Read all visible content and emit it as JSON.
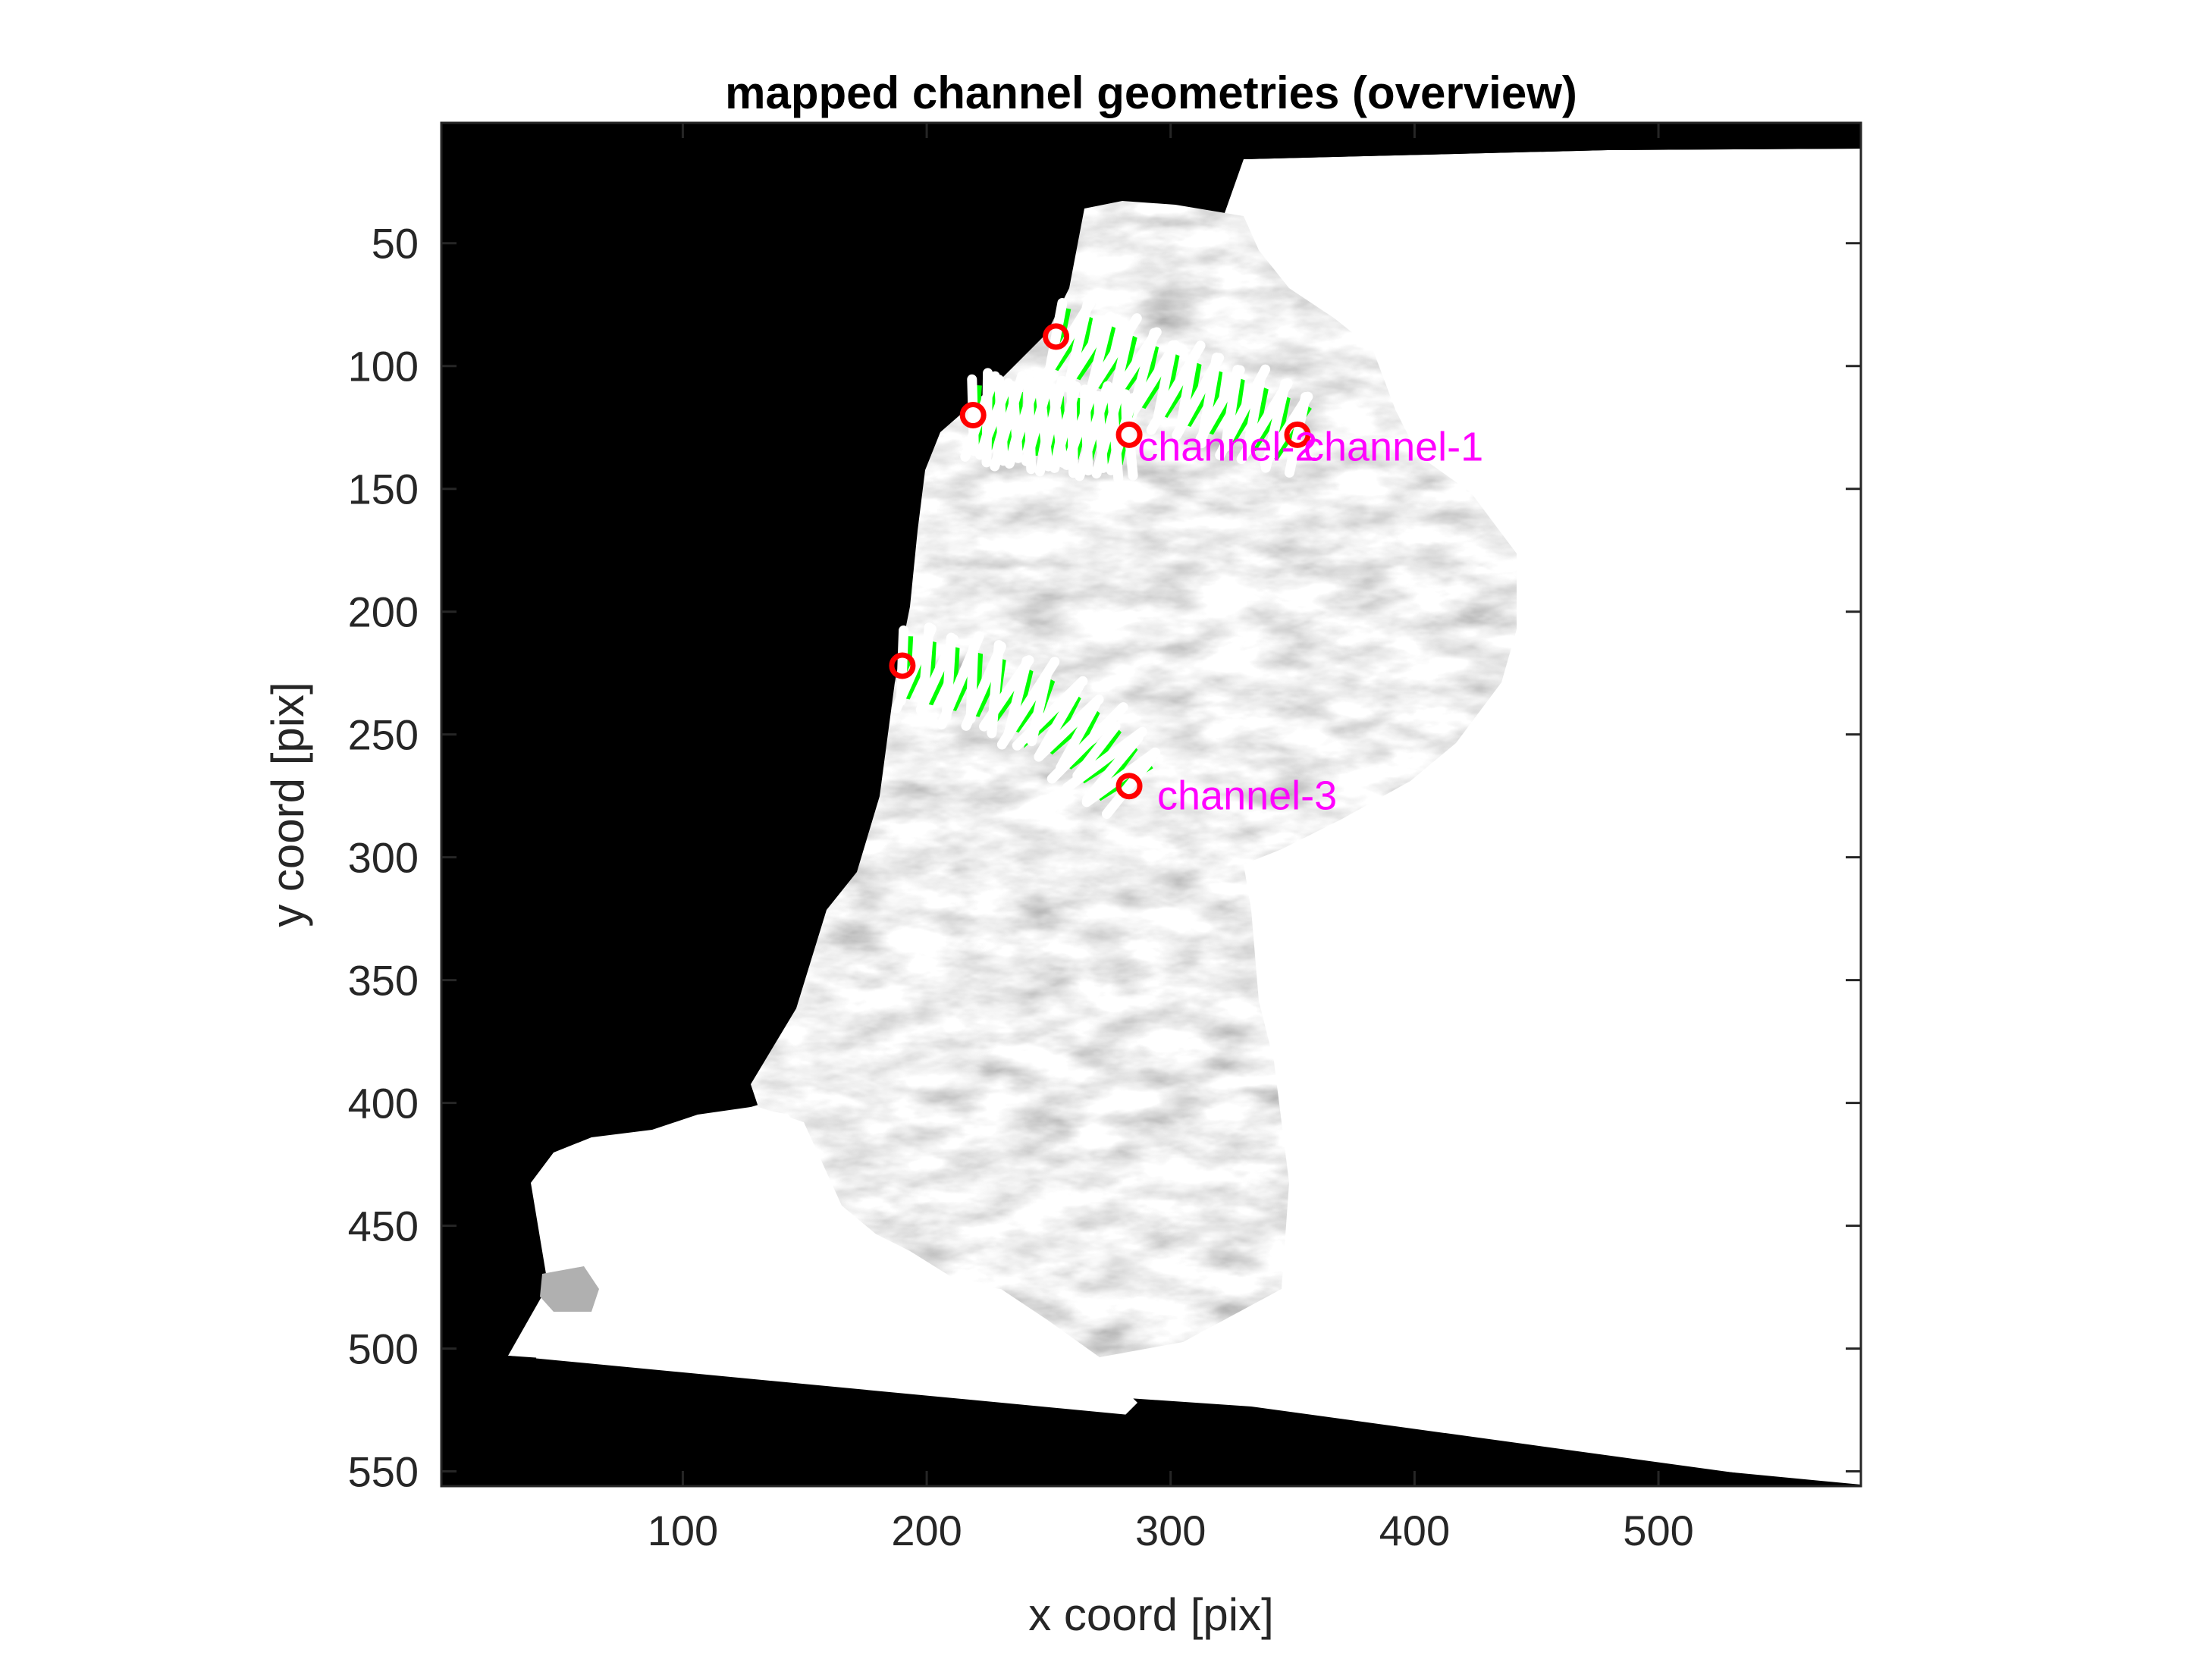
{
  "chart_data": {
    "type": "image",
    "title": "mapped channel geometries (overview)",
    "xlabel": "x coord [pix]",
    "ylabel": "y coord [pix]",
    "xlim": [
      1,
      583
    ],
    "ylim": [
      1,
      556
    ],
    "y_reversed": true,
    "x_ticks": [
      100,
      200,
      300,
      400,
      500
    ],
    "y_ticks": [
      50,
      100,
      150,
      200,
      250,
      300,
      350,
      400,
      450,
      500,
      550
    ],
    "colormap": "gray",
    "colors": {
      "crosssection": "#ffffff",
      "centerline": "#00ff00",
      "endpoint": "#ff0000",
      "label": "#ff00ff"
    },
    "channels": [
      {
        "name": "channel-1",
        "label_at": [
          352,
          133
        ],
        "centerline": [
          [
            253,
            88
          ],
          [
            270,
            95
          ],
          [
            290,
            104
          ],
          [
            310,
            112
          ],
          [
            330,
            119
          ],
          [
            352,
            128
          ]
        ]
      },
      {
        "name": "channel-2",
        "label_at": [
          284,
          133
        ],
        "centerline": [
          [
            219,
            120
          ],
          [
            230,
            122
          ],
          [
            245,
            124
          ],
          [
            258,
            125
          ],
          [
            272,
            127
          ],
          [
            283,
            128
          ]
        ]
      },
      {
        "name": "channel-3",
        "label_at": [
          292,
          275
        ],
        "centerline": [
          [
            190,
            222
          ],
          [
            210,
            227
          ],
          [
            230,
            232
          ],
          [
            250,
            241
          ],
          [
            268,
            255
          ],
          [
            283,
            271
          ]
        ]
      }
    ]
  }
}
